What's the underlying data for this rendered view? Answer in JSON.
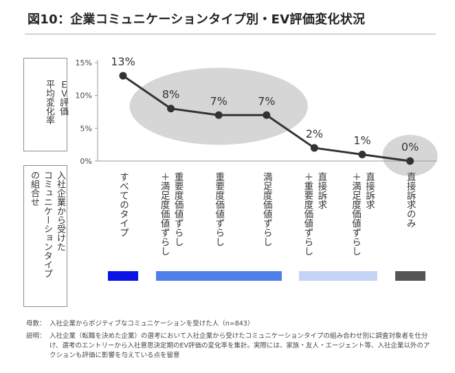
{
  "title": "図10：企業コミュニケーションタイプ別・EV評価変化状況",
  "ylabel_lines": [
    "ＥＶ評価",
    "平均変化率",
    ""
  ],
  "rowlabel_lines": [
    "入社企業から受けた",
    "コミュニケーションタイプ",
    "の組合せ"
  ],
  "chart_data": {
    "type": "line",
    "title": "",
    "xlabel": "",
    "ylabel": "ＥＶ評価平均変化率",
    "ylim": [
      0,
      15
    ],
    "yticks": [
      0,
      5,
      10,
      15
    ],
    "ytick_labels": [
      "0%",
      "5%",
      "10%",
      "15%"
    ],
    "categories": [
      "すべてのタイプ",
      "重要度価値ずらし＋満足度価値ずらし",
      "重要度価値ずらし",
      "満足度価値ずらし",
      "直接訴求＋重要度価値ずらし",
      "直接訴求＋満足度価値ずらし",
      "直接訴求のみ"
    ],
    "category_lines": [
      [
        "すべてのタイプ"
      ],
      [
        "重要度価値ずらし",
        "＋満足度価値ずらし"
      ],
      [
        "重要度価値ずらし"
      ],
      [
        "満足度価値ずらし"
      ],
      [
        "直接訴求",
        "＋重要度価値ずらし"
      ],
      [
        "直接訴求",
        "＋満足度価値ずらし"
      ],
      [
        "直接訴求のみ"
      ]
    ],
    "values": [
      13,
      8,
      7,
      7,
      2,
      1,
      0
    ],
    "data_labels": [
      "13%",
      "8%",
      "7%",
      "7%",
      "2%",
      "1%",
      "0%"
    ],
    "highlight_groups": [
      [
        1,
        3
      ],
      [
        6,
        6
      ]
    ],
    "grid": false,
    "legend_groups": [
      {
        "from": 0,
        "to": 0,
        "color": "#0a14e6"
      },
      {
        "from": 1,
        "to": 3,
        "color": "#4f7fe8"
      },
      {
        "from": 4,
        "to": 5,
        "color": "#c5d3f7"
      },
      {
        "from": 6,
        "to": 6,
        "color": "#555555"
      }
    ],
    "line_color": "#333333",
    "highlight_color": "#d6d6d6"
  },
  "notes": {
    "sample_key": "母数：",
    "sample_text": "入社企業からポジティブなコミュニケーションを受けた人（n=843）",
    "desc_key": "説明：",
    "desc_text": "入社企業（転職を決めた企業）の選考において入社企業から受けたコミュニケーションタイプの組み合わせ別に調査対象者を仕分け、選考のエントリーから入社意思決定期のEV評価の変化率を集計。実際には、家族・友人・エージェント等、入社企業以外のアクションも評価に影響を与えている点を留意"
  }
}
